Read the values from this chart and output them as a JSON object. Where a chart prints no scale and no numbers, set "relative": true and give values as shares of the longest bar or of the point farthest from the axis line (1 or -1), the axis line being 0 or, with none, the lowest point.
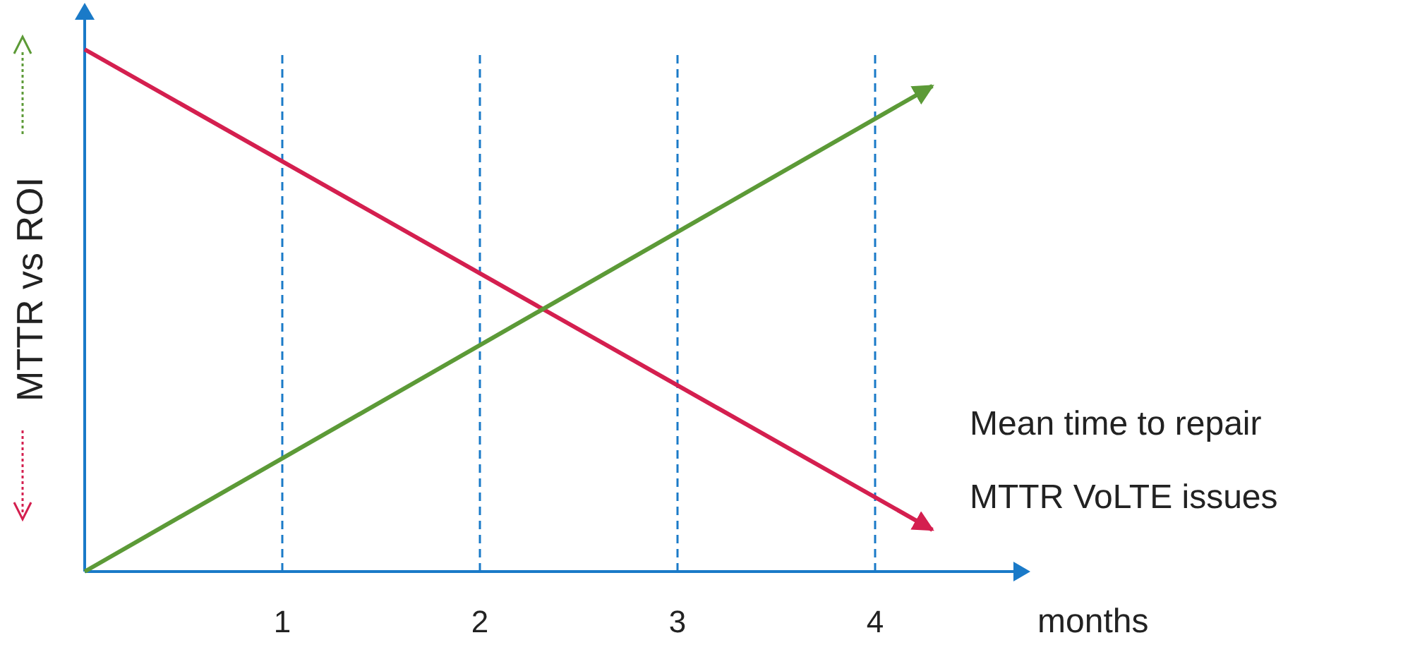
{
  "chart_data": {
    "type": "line",
    "relative": true,
    "xlabel": "months",
    "ylabel": "MTTR vs ROI",
    "xlim": [
      0,
      4.7
    ],
    "xticks": [
      1,
      2,
      3,
      4
    ],
    "grid": "x",
    "x": [
      0,
      4.29
    ],
    "series": [
      {
        "color": "#d41f4f",
        "values": [
          1,
          0.08
        ]
      },
      {
        "color": "#5c9a37",
        "values": [
          0,
          0.93
        ]
      }
    ],
    "annotations": [
      "Mean time to repair",
      "MTTR VoLTE issues"
    ]
  }
}
